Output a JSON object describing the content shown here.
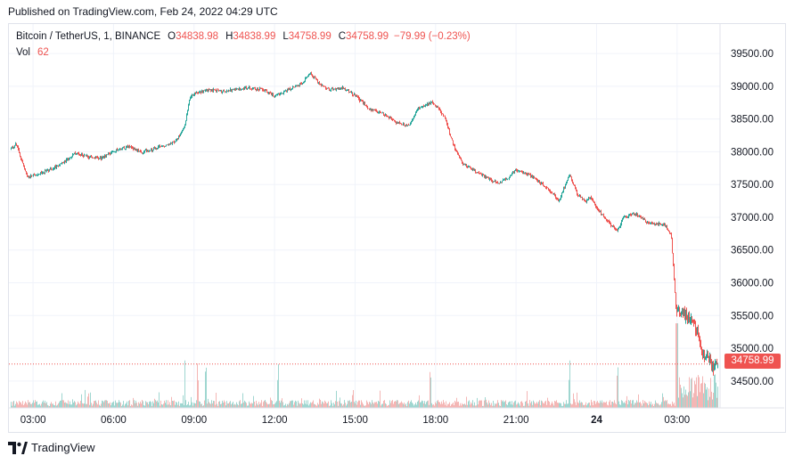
{
  "header": {
    "published": "Published on TradingView.com, Feb 24, 2022 04:29 UTC"
  },
  "legend": {
    "symbol": "Bitcoin / TetherUS, 1, BINANCE",
    "open_label": "O",
    "open": "34838.98",
    "high_label": "H",
    "high": "34838.99",
    "low_label": "L",
    "low": "34758.99",
    "close_label": "C",
    "close": "34758.99",
    "change": "−79.99 (−0.23%)",
    "volume_label": "Vol",
    "volume": "62"
  },
  "last_price_label": "34758.99",
  "brand": {
    "name": "TradingView",
    "logo_icon": "tradingview-logo-icon"
  },
  "colors": {
    "up": "#26a69a",
    "down": "#ef5350",
    "grid": "#f0f3fa",
    "axis_text": "#131722",
    "price_line": "#ef5350",
    "up_volume": "#9fd6d0",
    "down_volume": "#f4b6b5"
  },
  "chart_data": {
    "type": "candlestick",
    "title": "Bitcoin / TetherUS, 1, BINANCE",
    "interval": "1 minute",
    "y_axis": {
      "position": "right",
      "ticks": [
        34500,
        35000,
        35500,
        36000,
        36500,
        37000,
        37500,
        38000,
        38500,
        39000,
        39500
      ],
      "tick_labels": [
        "34500.00",
        "35000.00",
        "35500.00",
        "36000.00",
        "36500.00",
        "37000.00",
        "37500.00",
        "38000.00",
        "38500.00",
        "39000.00",
        "39500.00"
      ],
      "range": [
        34090,
        39950
      ]
    },
    "x_axis": {
      "tick_labels": [
        "03:00",
        "06:00",
        "09:00",
        "12:00",
        "15:00",
        "18:00",
        "21:00",
        "24",
        "03:00"
      ],
      "tick_hours": [
        3,
        6,
        9,
        12,
        15,
        18,
        21,
        24,
        27
      ],
      "bold_tick": "24",
      "range_hours": [
        2.1,
        28.6
      ]
    },
    "grid": true,
    "price_path": {
      "hours": [
        2.1,
        2.3,
        2.5,
        2.7,
        3.0,
        3.5,
        4.0,
        4.5,
        5.0,
        5.5,
        6.0,
        6.5,
        7.0,
        7.5,
        8.0,
        8.3,
        8.6,
        8.8,
        9.0,
        9.5,
        10.0,
        10.5,
        11.0,
        11.5,
        12.0,
        12.5,
        13.0,
        13.3,
        13.6,
        14.0,
        14.5,
        15.0,
        15.5,
        16.0,
        16.5,
        17.0,
        17.3,
        17.6,
        17.9,
        18.3,
        18.7,
        19.0,
        19.5,
        20.0,
        20.3,
        20.7,
        21.0,
        21.5,
        22.0,
        22.3,
        22.6,
        22.8,
        23.0,
        23.3,
        23.6,
        23.8,
        24.0,
        24.2,
        24.5,
        24.8,
        25.0,
        25.5,
        26.0,
        26.5,
        26.8,
        27.0,
        27.1,
        27.3,
        27.6,
        27.8,
        28.0,
        28.2,
        28.4,
        28.6
      ],
      "close": [
        38050,
        38120,
        37850,
        37620,
        37650,
        37720,
        37820,
        37980,
        37920,
        37900,
        38020,
        38080,
        38000,
        38050,
        38120,
        38180,
        38400,
        38850,
        38900,
        38950,
        38920,
        38950,
        38980,
        38950,
        38850,
        38950,
        39050,
        39200,
        39050,
        38950,
        38980,
        38850,
        38650,
        38580,
        38450,
        38400,
        38650,
        38720,
        38750,
        38550,
        38050,
        37820,
        37700,
        37580,
        37520,
        37600,
        37720,
        37650,
        37500,
        37400,
        37250,
        37450,
        37650,
        37350,
        37250,
        37300,
        37150,
        37050,
        36900,
        36800,
        37000,
        37050,
        36900,
        36900,
        36750,
        35500,
        35600,
        35500,
        35450,
        35200,
        34900,
        34850,
        34700,
        34758.99
      ]
    },
    "volume_spikes_hours": [
      8.6,
      9.1,
      9.4,
      12.1,
      17.8,
      23.0,
      24.8,
      27.0,
      27.9,
      28.3
    ],
    "last_price": 34758.99
  }
}
